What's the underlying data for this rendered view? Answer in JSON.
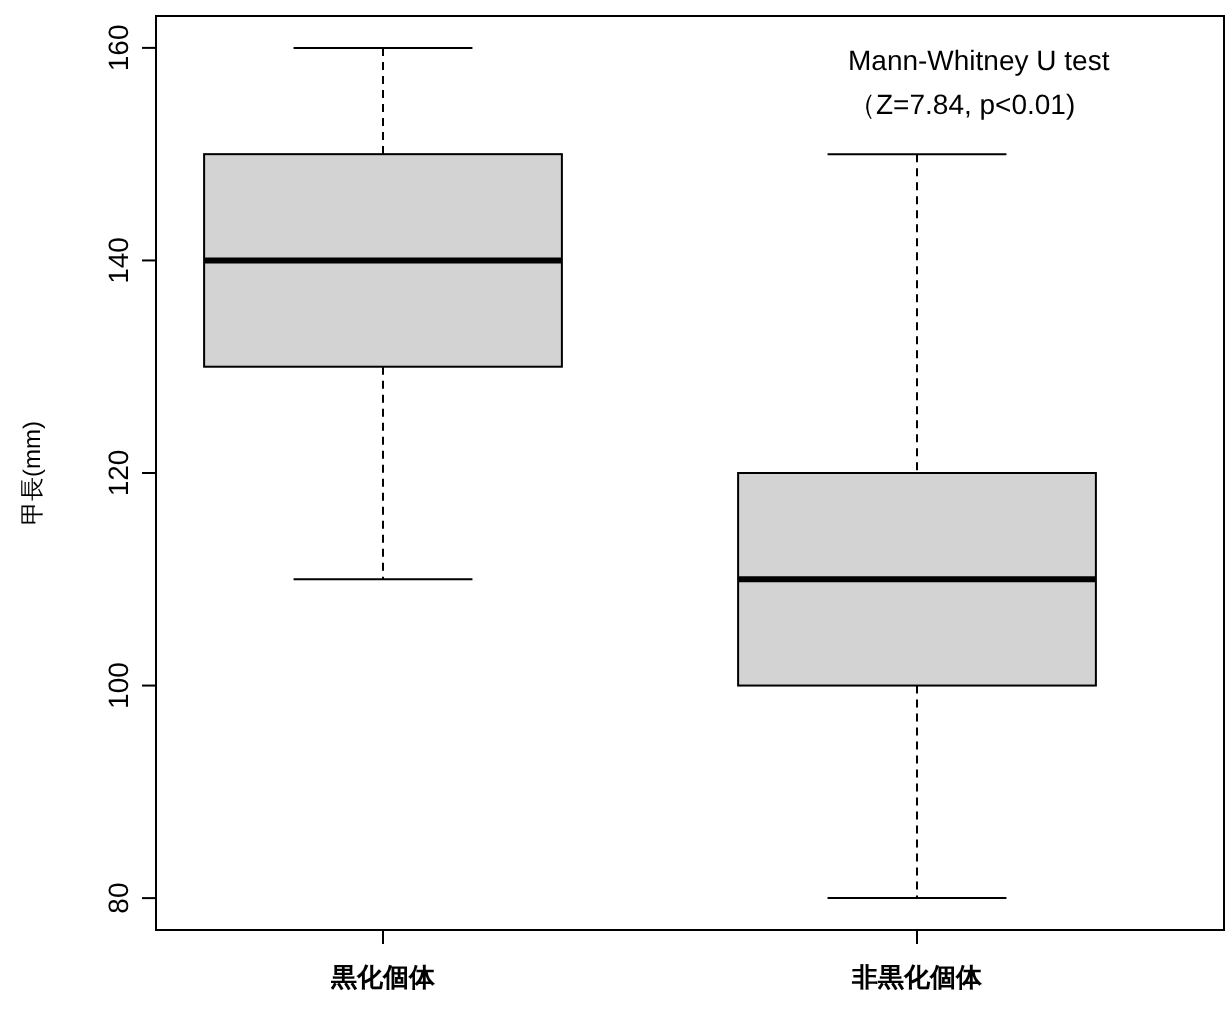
{
  "chart_data": {
    "type": "box",
    "categories": [
      "黒化個体",
      "非黒化個体"
    ],
    "boxes": [
      {
        "low": 110,
        "q1": 130,
        "median": 140,
        "q3": 150,
        "high": 160
      },
      {
        "low": 80,
        "q1": 100,
        "median": 110,
        "q3": 120,
        "high": 150
      }
    ],
    "ylabel": "甲長(mm)",
    "ylim": [
      77,
      163
    ],
    "yticks": [
      80,
      100,
      120,
      140,
      160
    ],
    "grid": false,
    "color": "#d3d3d3",
    "annotations": [
      "Mann-Whitney U test",
      "（Z=7.84, p<0.01)"
    ]
  }
}
